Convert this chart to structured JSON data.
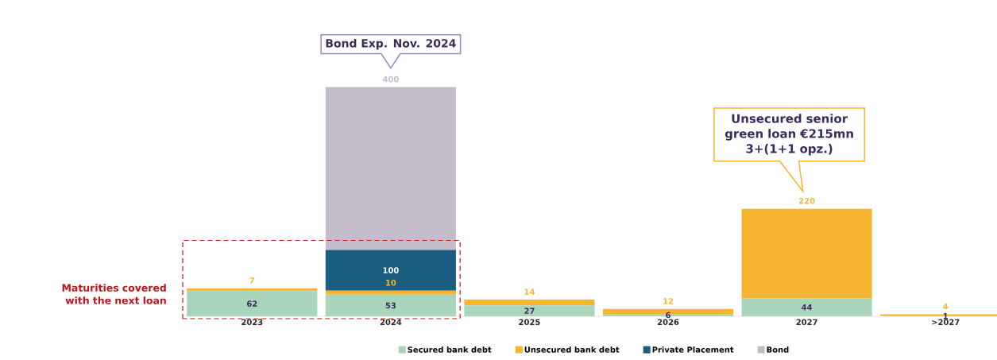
{
  "chart_data": {
    "type": "bar",
    "stacked": true,
    "data_labels": true,
    "legend": "bottom",
    "categories": [
      "2023",
      "2024",
      "2025",
      "2026",
      "2027",
      ">2027"
    ],
    "series": [
      {
        "name": "Secured bank debt",
        "color": "#a9d5bb",
        "values": [
          62,
          53,
          27,
          6,
          44,
          1
        ]
      },
      {
        "name": "Unsecured bank debt",
        "color": "#f7b431",
        "values": [
          7,
          10,
          14,
          12,
          220,
          4
        ]
      },
      {
        "name": "Private Placement",
        "color": "#1b5e80",
        "values": [
          null,
          100,
          null,
          null,
          null,
          null
        ]
      },
      {
        "name": "Bond",
        "color": "#c3bdcb",
        "values": [
          null,
          400,
          null,
          null,
          null,
          null
        ]
      }
    ],
    "annotations": [
      "Bond Exp. Nov. 2024",
      "Unsecured senior green loan €215mn 3+(1+1 opz.)",
      "Maturities covered with the next loan"
    ]
  }
}
